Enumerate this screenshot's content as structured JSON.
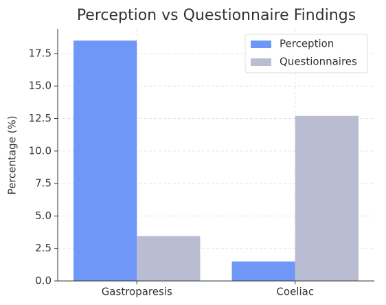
{
  "chart_data": {
    "type": "bar",
    "title": "Perception vs Questionnaire Findings",
    "y_label": "Percentage (%)",
    "categories": [
      "Gastroparesis",
      "Coeliac"
    ],
    "series": [
      {
        "name": "Perception",
        "color": "#6e97f7",
        "values": [
          18.5,
          1.5
        ]
      },
      {
        "name": "Questionnaires",
        "color": "#babdd1",
        "values": [
          3.45,
          12.7
        ]
      }
    ],
    "ylim": [
      0,
      19.4
    ],
    "yticks": [
      {
        "value": 0,
        "label": "0.0"
      },
      2.5,
      {
        "value": 5,
        "label": "5.0"
      },
      7.5,
      {
        "value": 10,
        "label": "10.0"
      },
      12.5,
      {
        "value": 15,
        "label": "15.0"
      },
      17.5
    ],
    "grid": true,
    "legend": "upper right"
  }
}
